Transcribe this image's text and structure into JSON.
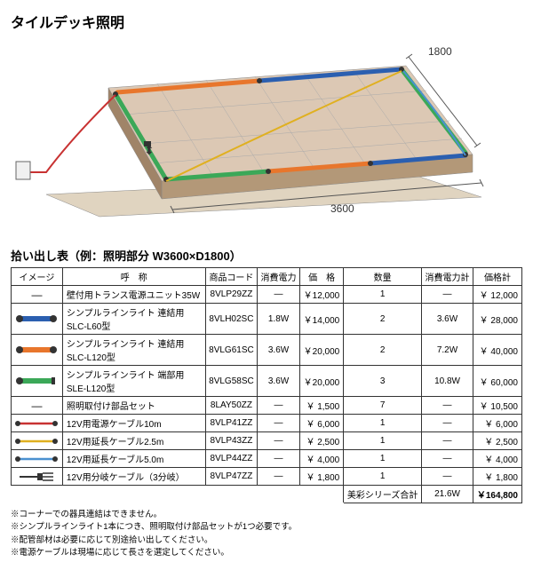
{
  "title": "タイルデッキ照明",
  "diagram": {
    "width_label": "1800",
    "depth_label": "3600"
  },
  "subtitle": "拾い出し表（例：照明部分 W3600×D1800）",
  "headers": [
    "イメージ",
    "呼　称",
    "商品コード",
    "消費電力",
    "価　格",
    "数量",
    "消費電力計",
    "価格計"
  ],
  "rows": [
    {
      "icon": "dash",
      "name": "壁付用トランス電源ユニット35W",
      "code": "8VLP29ZZ",
      "power": "―",
      "price": "￥12,000",
      "qty": "1",
      "power_sum": "―",
      "subtotal": "￥ 12,000"
    },
    {
      "icon": "bar-blue",
      "name": "シンプルラインライト 連結用 SLC-L60型",
      "code": "8VLH02SC",
      "power": "1.8W",
      "price": "￥14,000",
      "qty": "2",
      "power_sum": "3.6W",
      "subtotal": "￥ 28,000"
    },
    {
      "icon": "bar-orange",
      "name": "シンプルラインライト 連結用 SLC-L120型",
      "code": "8VLG61SC",
      "power": "3.6W",
      "price": "￥20,000",
      "qty": "2",
      "power_sum": "7.2W",
      "subtotal": "￥ 40,000"
    },
    {
      "icon": "bar-green",
      "name": "シンプルラインライト 端部用 SLE-L120型",
      "code": "8VLG58SC",
      "power": "3.6W",
      "price": "￥20,000",
      "qty": "3",
      "power_sum": "10.8W",
      "subtotal": "￥ 60,000"
    },
    {
      "icon": "dash",
      "name": "照明取付け部品セット",
      "code": "8LAY50ZZ",
      "power": "―",
      "price": "￥ 1,500",
      "qty": "7",
      "power_sum": "―",
      "subtotal": "￥ 10,500"
    },
    {
      "icon": "line-red",
      "name": "12V用電源ケーブル10m",
      "code": "8VLP41ZZ",
      "power": "―",
      "price": "￥ 6,000",
      "qty": "1",
      "power_sum": "―",
      "subtotal": "￥  6,000"
    },
    {
      "icon": "line-yellow",
      "name": "12V用延長ケーブル2.5m",
      "code": "8VLP43ZZ",
      "power": "―",
      "price": "￥ 2,500",
      "qty": "1",
      "power_sum": "―",
      "subtotal": "￥  2,500"
    },
    {
      "icon": "line-blue",
      "name": "12V用延長ケーブル5.0m",
      "code": "8VLP44ZZ",
      "power": "―",
      "price": "￥ 4,000",
      "qty": "1",
      "power_sum": "―",
      "subtotal": "￥  4,000"
    },
    {
      "icon": "branch",
      "name": "12V用分岐ケーブル（3分岐）",
      "code": "8VLP47ZZ",
      "power": "―",
      "price": "￥ 1,800",
      "qty": "1",
      "power_sum": "―",
      "subtotal": "￥  1,800"
    }
  ],
  "total": {
    "label": "美彩シリーズ合計",
    "power": "21.6W",
    "price": "￥164,800"
  },
  "notes": [
    "※コーナーでの器具連結はできません。",
    "※シンプルラインライト1本につき、照明取付け部品セットが1つ必要です。",
    "※配管部材は必要に応じて別途拾い出してください。",
    "※電源ケーブルは現場に応じて長さを選定してください。"
  ],
  "colors": {
    "blue": "#2b5fb0",
    "orange": "#e8762c",
    "green": "#3ba858",
    "red": "#c83232",
    "yellow": "#e0b020",
    "lblue": "#4a90d0",
    "deck_top": "#dcc8b4",
    "deck_side": "#b39878",
    "ground": "#e0d4c0",
    "line": "#555"
  }
}
